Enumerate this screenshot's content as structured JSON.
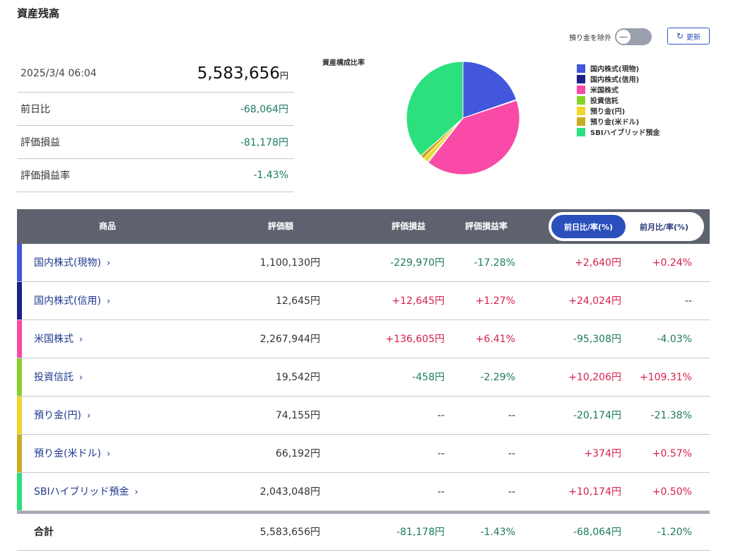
{
  "page": {
    "title": "資産残高"
  },
  "controls": {
    "exclude_deposit_label": "預り金を除外",
    "toggle_symbol": "—",
    "refresh_icon": "↻",
    "refresh_label": "更新"
  },
  "summary": {
    "datetime": "2025/3/4 06:04",
    "total": "5,583,656",
    "total_unit": "円",
    "rows": [
      {
        "label": "前日比",
        "value": "-68,064円",
        "sign": "neg"
      },
      {
        "label": "評価損益",
        "value": "-81,178円",
        "sign": "neg"
      },
      {
        "label": "評価損益率",
        "value": "-1.43%",
        "sign": "neg"
      }
    ]
  },
  "chart_data": {
    "type": "pie",
    "title": "資産構成比率",
    "unit": "円",
    "legend_position": "right",
    "slices": [
      {
        "label": "国内株式(現物)",
        "value": 1100130,
        "color": "#4257dc"
      },
      {
        "label": "国内株式(信用)",
        "value": 12645,
        "color": "#1c2187"
      },
      {
        "label": "米国株式",
        "value": 2267944,
        "color": "#f84aa6"
      },
      {
        "label": "投資信託",
        "value": 19542,
        "color": "#86d22c"
      },
      {
        "label": "預り金(円)",
        "value": 74155,
        "color": "#f2d52a"
      },
      {
        "label": "預り金(米ドル)",
        "value": 66192,
        "color": "#c9ad20"
      },
      {
        "label": "SBIハイブリッド預金",
        "value": 2043048,
        "color": "#2ce07e"
      }
    ]
  },
  "table": {
    "headers": {
      "product": "商品",
      "valuation": "評価額",
      "pnl": "評価損益",
      "pnl_rate": "評価損益率"
    },
    "toggle": {
      "active": "前日比/率(%)",
      "inactive": "前月比/率(%)"
    },
    "chevron": "›",
    "rows": [
      {
        "name": "国内株式(現物)",
        "color": "#4257dc",
        "valuation": "1,100,130円",
        "pnl": "-229,970円",
        "pnl_sign": "neg",
        "pnl_rate": "-17.28%",
        "rate_sign": "neg",
        "day_change": "+2,640円",
        "day_sign": "pos",
        "day_rate": "+0.24%",
        "day_rate_sign": "pos"
      },
      {
        "name": "国内株式(信用)",
        "color": "#1c2187",
        "valuation": "12,645円",
        "pnl": "+12,645円",
        "pnl_sign": "pos",
        "pnl_rate": "+1.27%",
        "rate_sign": "pos",
        "day_change": "+24,024円",
        "day_sign": "pos",
        "day_rate": "--",
        "day_rate_sign": "neu"
      },
      {
        "name": "米国株式",
        "color": "#f84aa6",
        "valuation": "2,267,944円",
        "pnl": "+136,605円",
        "pnl_sign": "pos",
        "pnl_rate": "+6.41%",
        "rate_sign": "pos",
        "day_change": "-95,308円",
        "day_sign": "neg",
        "day_rate": "-4.03%",
        "day_rate_sign": "neg"
      },
      {
        "name": "投資信託",
        "color": "#86d22c",
        "valuation": "19,542円",
        "pnl": "-458円",
        "pnl_sign": "neg",
        "pnl_rate": "-2.29%",
        "rate_sign": "neg",
        "day_change": "+10,206円",
        "day_sign": "pos",
        "day_rate": "+109.31%",
        "day_rate_sign": "pos"
      },
      {
        "name": "預り金(円)",
        "color": "#f2d52a",
        "valuation": "74,155円",
        "pnl": "--",
        "pnl_sign": "neu",
        "pnl_rate": "--",
        "rate_sign": "neu",
        "day_change": "-20,174円",
        "day_sign": "neg",
        "day_rate": "-21.38%",
        "day_rate_sign": "neg"
      },
      {
        "name": "預り金(米ドル)",
        "color": "#c9ad20",
        "valuation": "66,192円",
        "pnl": "--",
        "pnl_sign": "neu",
        "pnl_rate": "--",
        "rate_sign": "neu",
        "day_change": "+374円",
        "day_sign": "pos",
        "day_rate": "+0.57%",
        "day_rate_sign": "pos"
      },
      {
        "name": "SBIハイブリッド預金",
        "color": "#2ce07e",
        "valuation": "2,043,048円",
        "pnl": "--",
        "pnl_sign": "neu",
        "pnl_rate": "--",
        "rate_sign": "neu",
        "day_change": "+10,174円",
        "day_sign": "pos",
        "day_rate": "+0.50%",
        "day_rate_sign": "pos"
      }
    ],
    "total": {
      "label": "合計",
      "valuation": "5,583,656円",
      "pnl": "-81,178円",
      "pnl_rate": "-1.43%",
      "day_change": "-68,064円",
      "day_rate": "-1.20%"
    }
  }
}
